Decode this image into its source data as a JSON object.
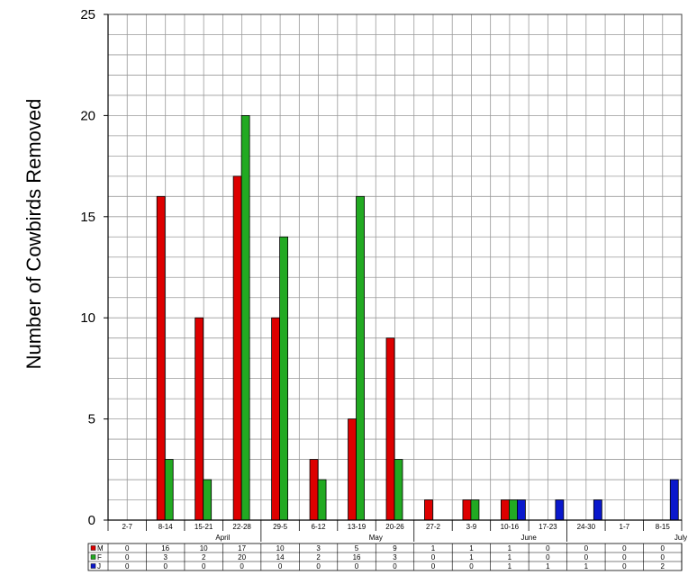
{
  "chart_data": {
    "type": "bar",
    "ylabel": "Number of Cowbirds Removed",
    "ylim": [
      0,
      25
    ],
    "yticks": [
      "0",
      "5",
      "10",
      "15",
      "20",
      "25"
    ],
    "grid": true,
    "categories": [
      "2-7",
      "8-14",
      "15-21",
      "22-28",
      "29-5",
      "6-12",
      "13-19",
      "20-26",
      "27-2",
      "3-9",
      "10-16",
      "17-23",
      "24-30",
      "1-7",
      "8-15"
    ],
    "months": [
      "April",
      "May",
      "June",
      "July"
    ],
    "series": [
      {
        "name": "M",
        "color": "#dd0000",
        "values": [
          0,
          16,
          10,
          17,
          10,
          3,
          5,
          9,
          1,
          1,
          1,
          0,
          0,
          0,
          0
        ]
      },
      {
        "name": "F",
        "color": "#22aa22",
        "values": [
          0,
          3,
          2,
          20,
          14,
          2,
          16,
          3,
          0,
          1,
          1,
          0,
          0,
          0,
          0
        ]
      },
      {
        "name": "J",
        "color": "#0a18cc",
        "values": [
          0,
          0,
          0,
          0,
          0,
          0,
          0,
          0,
          0,
          0,
          1,
          1,
          1,
          0,
          2
        ]
      }
    ]
  }
}
